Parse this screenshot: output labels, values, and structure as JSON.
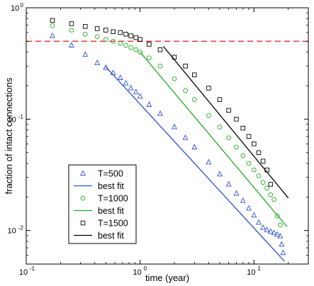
{
  "chart_data": {
    "type": "scatter",
    "title": "",
    "xlabel": "time (year)",
    "ylabel": "fraction of intact connections",
    "xscale": "log",
    "yscale": "log",
    "xlim": [
      0.1,
      30
    ],
    "ylim": [
      0.005,
      1
    ],
    "x_ticks": [
      {
        "value": 0.1,
        "base": "10",
        "exp": "-1"
      },
      {
        "value": 1,
        "base": "10",
        "exp": "0"
      },
      {
        "value": 10,
        "base": "10",
        "exp": "1"
      }
    ],
    "y_ticks": [
      {
        "value": 0.01,
        "base": "10",
        "exp": "-2"
      },
      {
        "value": 0.1,
        "base": "10",
        "exp": "-1"
      },
      {
        "value": 1,
        "base": "10",
        "exp": "0"
      }
    ],
    "reference_line": {
      "y": 0.5,
      "style": "dashed",
      "color": "#e8413c"
    },
    "legend_position": "lower-left",
    "series": [
      {
        "name": "T=500",
        "marker": "triangle",
        "color": "#2f4fd8",
        "x": [
          0.17,
          0.25,
          0.33,
          0.42,
          0.5,
          0.58,
          0.67,
          0.75,
          0.83,
          0.92,
          1.0,
          1.2,
          1.5,
          2.0,
          2.5,
          3.0,
          4.0,
          5.0,
          6.0,
          7.0,
          8.0,
          9.0,
          10.0,
          11.0,
          12.0,
          13.0,
          14.0,
          15.0,
          16.0,
          17.0,
          17.5,
          18.0
        ],
        "y": [
          0.56,
          0.46,
          0.38,
          0.32,
          0.29,
          0.26,
          0.235,
          0.21,
          0.19,
          0.175,
          0.16,
          0.135,
          0.112,
          0.085,
          0.068,
          0.056,
          0.041,
          0.032,
          0.026,
          0.0215,
          0.0185,
          0.0158,
          0.0137,
          0.0118,
          0.0106,
          0.0101,
          0.0098,
          0.0095,
          0.0092,
          0.0089,
          0.0075,
          0.0063
        ]
      },
      {
        "name": "best fit",
        "type": "line",
        "color": "#2f4fd8",
        "x": [
          0.5,
          18.5
        ],
        "y": [
          0.295,
          0.0053
        ]
      },
      {
        "name": "T=1000",
        "marker": "circle",
        "color": "#22aa22",
        "x": [
          0.17,
          0.25,
          0.33,
          0.42,
          0.5,
          0.58,
          0.67,
          0.75,
          0.83,
          0.92,
          1.0,
          1.2,
          1.5,
          2.0,
          2.5,
          3.0,
          4.0,
          5.0,
          6.0,
          7.0,
          8.0,
          9.0,
          10.0,
          11.0,
          12.0,
          13.0,
          14.0,
          15.0,
          16.0,
          17.0
        ],
        "y": [
          0.69,
          0.63,
          0.58,
          0.55,
          0.52,
          0.5,
          0.48,
          0.46,
          0.44,
          0.42,
          0.4,
          0.355,
          0.3,
          0.23,
          0.18,
          0.15,
          0.108,
          0.085,
          0.068,
          0.056,
          0.047,
          0.04,
          0.035,
          0.031,
          0.027,
          0.024,
          0.021,
          0.019,
          0.0135,
          0.0112
        ]
      },
      {
        "name": "best fit",
        "type": "line",
        "color": "#22aa22",
        "x": [
          1.0,
          19.5
        ],
        "y": [
          0.4,
          0.0108
        ]
      },
      {
        "name": "T=1500",
        "marker": "square",
        "color": "#000000",
        "x": [
          0.17,
          0.25,
          0.33,
          0.42,
          0.5,
          0.58,
          0.67,
          0.75,
          0.83,
          0.92,
          1.0,
          1.2,
          1.5,
          2.0,
          2.5,
          3.0,
          4.0,
          5.0,
          6.0,
          7.0,
          8.0,
          9.0,
          10.0,
          11.0,
          12.0,
          13.0,
          14.0
        ],
        "y": [
          0.77,
          0.72,
          0.68,
          0.65,
          0.63,
          0.61,
          0.6,
          0.58,
          0.56,
          0.54,
          0.52,
          0.47,
          0.42,
          0.36,
          0.3,
          0.25,
          0.19,
          0.15,
          0.12,
          0.1,
          0.083,
          0.07,
          0.06,
          0.05,
          0.042,
          0.035,
          0.026
        ]
      },
      {
        "name": "best fit",
        "type": "line",
        "color": "#000000",
        "x": [
          1.6,
          20.0
        ],
        "y": [
          0.45,
          0.0196
        ]
      }
    ]
  }
}
